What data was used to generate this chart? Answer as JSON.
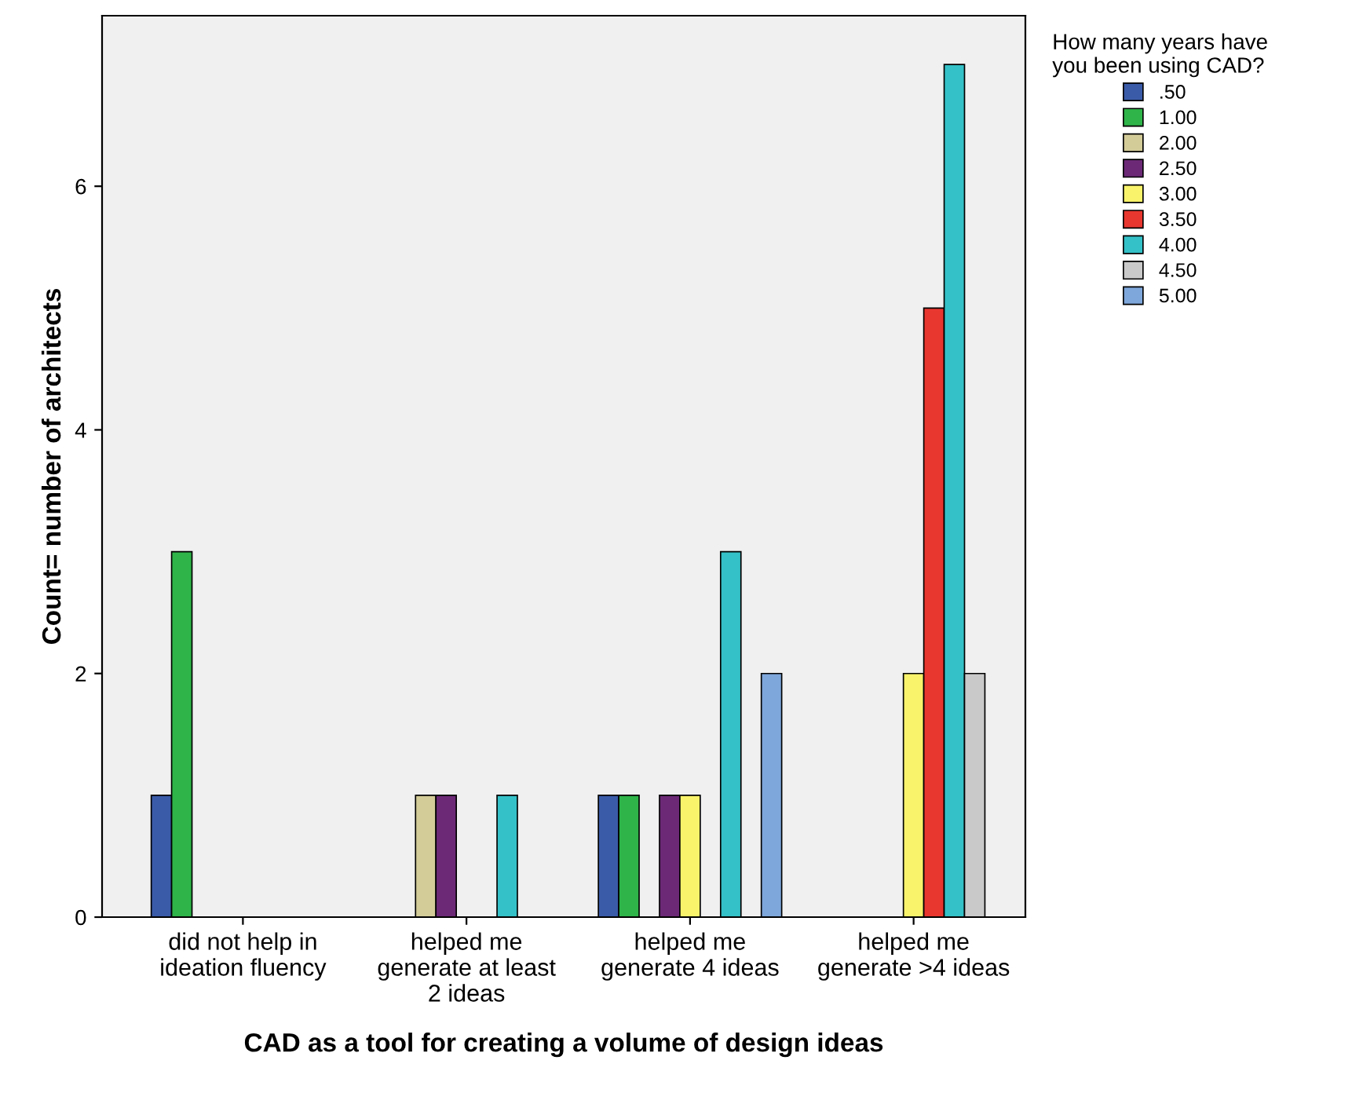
{
  "chart_data": {
    "type": "bar",
    "xlabel": "CAD as a tool for creating a volume of design ideas",
    "ylabel": "Count= number of architects",
    "legend_title": "How many years have you been using CAD?",
    "categories": [
      "did not help in ideation fluency",
      "helped me generate at least 2 ideas",
      "helped me generate 4 ideas",
      "helped me generate >4 ideas"
    ],
    "series": [
      {
        "name": ".50",
        "color": "#3a5ba8",
        "values": [
          1,
          null,
          1,
          null
        ]
      },
      {
        "name": "1.00",
        "color": "#2fb449",
        "values": [
          3,
          null,
          1,
          null
        ]
      },
      {
        "name": "2.00",
        "color": "#d3cb98",
        "values": [
          null,
          1,
          null,
          null
        ]
      },
      {
        "name": "2.50",
        "color": "#6c2a76",
        "values": [
          null,
          1,
          1,
          null
        ]
      },
      {
        "name": "3.00",
        "color": "#f8f36a",
        "values": [
          null,
          null,
          1,
          2
        ]
      },
      {
        "name": "3.50",
        "color": "#e8372f",
        "values": [
          null,
          null,
          null,
          5
        ]
      },
      {
        "name": "4.00",
        "color": "#34c1c7",
        "values": [
          null,
          1,
          3,
          7
        ]
      },
      {
        "name": "4.50",
        "color": "#c9c9c9",
        "values": [
          null,
          null,
          null,
          2
        ]
      },
      {
        "name": "5.00",
        "color": "#7ea7db",
        "values": [
          null,
          null,
          2,
          null
        ]
      }
    ],
    "ylim": [
      0,
      7.4
    ],
    "yticks": [
      0,
      2,
      4,
      6
    ],
    "grid": false,
    "legend": "top right"
  }
}
